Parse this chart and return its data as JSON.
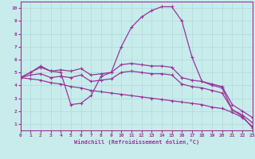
{
  "xlabel": "Windchill (Refroidissement éolien,°C)",
  "background_color": "#c8ecec",
  "grid_color": "#b0d8d8",
  "line_color": "#993399",
  "xlim": [
    0,
    23
  ],
  "ylim": [
    0.5,
    10.5
  ],
  "xticks": [
    0,
    1,
    2,
    3,
    4,
    5,
    6,
    7,
    8,
    9,
    10,
    11,
    12,
    13,
    14,
    15,
    16,
    17,
    18,
    19,
    20,
    21,
    22,
    23
  ],
  "yticks": [
    1,
    2,
    3,
    4,
    5,
    6,
    7,
    8,
    9,
    10
  ],
  "line1_x": [
    0,
    1,
    2,
    3,
    4,
    5,
    6,
    7,
    8,
    9,
    10,
    11,
    12,
    13,
    14,
    15,
    16,
    17,
    18,
    19,
    20,
    21,
    22,
    23
  ],
  "line1_y": [
    4.6,
    5.0,
    5.5,
    5.1,
    5.0,
    2.5,
    2.6,
    3.2,
    4.7,
    5.0,
    7.0,
    8.5,
    9.3,
    9.8,
    10.1,
    10.1,
    9.0,
    6.2,
    4.3,
    4.0,
    3.8,
    2.1,
    1.6,
    0.7
  ],
  "line2_x": [
    0,
    1,
    2,
    3,
    4,
    5,
    6,
    7,
    8,
    9,
    10,
    11,
    12,
    13,
    14,
    15,
    16,
    17,
    18,
    19,
    20,
    21,
    22,
    23
  ],
  "line2_y": [
    4.6,
    5.0,
    5.4,
    5.1,
    5.2,
    5.1,
    5.3,
    4.8,
    4.9,
    5.0,
    5.6,
    5.7,
    5.6,
    5.5,
    5.5,
    5.4,
    4.6,
    4.4,
    4.3,
    4.1,
    3.9,
    2.5,
    2.0,
    1.5
  ],
  "line3_x": [
    0,
    1,
    2,
    3,
    4,
    5,
    6,
    7,
    8,
    9,
    10,
    11,
    12,
    13,
    14,
    15,
    16,
    17,
    18,
    19,
    20,
    21,
    22,
    23
  ],
  "line3_y": [
    4.6,
    4.8,
    4.9,
    4.6,
    4.7,
    4.6,
    4.8,
    4.3,
    4.4,
    4.5,
    5.0,
    5.1,
    5.0,
    4.9,
    4.9,
    4.8,
    4.1,
    3.9,
    3.8,
    3.6,
    3.4,
    2.1,
    1.7,
    1.1
  ],
  "line4_x": [
    0,
    1,
    2,
    3,
    4,
    5,
    6,
    7,
    8,
    9,
    10,
    11,
    12,
    13,
    14,
    15,
    16,
    17,
    18,
    19,
    20,
    21,
    22,
    23
  ],
  "line4_y": [
    4.6,
    4.5,
    4.4,
    4.2,
    4.1,
    3.9,
    3.8,
    3.6,
    3.5,
    3.4,
    3.3,
    3.2,
    3.1,
    3.0,
    2.9,
    2.8,
    2.7,
    2.6,
    2.5,
    2.3,
    2.2,
    1.9,
    1.5,
    0.8
  ]
}
